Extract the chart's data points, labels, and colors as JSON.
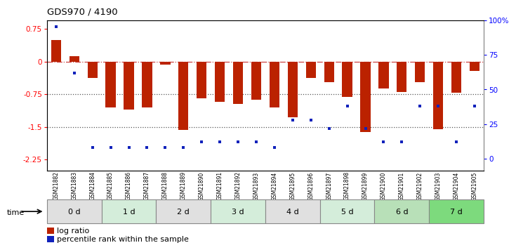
{
  "title": "GDS970 / 4190",
  "samples": [
    "GSM21882",
    "GSM21883",
    "GSM21884",
    "GSM21885",
    "GSM21886",
    "GSM21887",
    "GSM21888",
    "GSM21889",
    "GSM21890",
    "GSM21891",
    "GSM21892",
    "GSM21893",
    "GSM21894",
    "GSM21895",
    "GSM21896",
    "GSM21897",
    "GSM21898",
    "GSM21899",
    "GSM21900",
    "GSM21901",
    "GSM21902",
    "GSM21903",
    "GSM21904",
    "GSM21905"
  ],
  "log_ratio": [
    0.5,
    0.12,
    -0.38,
    -1.05,
    -1.1,
    -1.05,
    -0.08,
    -1.58,
    -0.85,
    -0.92,
    -0.98,
    -0.88,
    -1.05,
    -1.28,
    -0.38,
    -0.48,
    -0.82,
    -1.62,
    -0.62,
    -0.7,
    -0.48,
    -1.55,
    -0.72,
    -0.22
  ],
  "pct_rank": [
    95,
    62,
    8,
    8,
    8,
    8,
    8,
    8,
    12,
    12,
    12,
    12,
    8,
    28,
    28,
    22,
    38,
    22,
    12,
    12,
    38,
    38,
    12,
    38
  ],
  "time_groups": [
    {
      "label": "0 d",
      "start": 0,
      "end": 3,
      "color": "#e0e0e0"
    },
    {
      "label": "1 d",
      "start": 3,
      "end": 6,
      "color": "#d4edda"
    },
    {
      "label": "2 d",
      "start": 6,
      "end": 9,
      "color": "#e0e0e0"
    },
    {
      "label": "3 d",
      "start": 9,
      "end": 12,
      "color": "#d4edda"
    },
    {
      "label": "4 d",
      "start": 12,
      "end": 15,
      "color": "#e0e0e0"
    },
    {
      "label": "5 d",
      "start": 15,
      "end": 18,
      "color": "#d4edda"
    },
    {
      "label": "6 d",
      "start": 18,
      "end": 21,
      "color": "#b8e0b8"
    },
    {
      "label": "7 d",
      "start": 21,
      "end": 24,
      "color": "#7dda7d"
    }
  ],
  "ylim_left": [
    -2.5,
    0.95
  ],
  "ylim_right": [
    -8.33,
    100
  ],
  "yticks_left": [
    0.75,
    0.0,
    -0.75,
    -1.5,
    -2.25
  ],
  "ytick_strs_left": [
    "0.75",
    "0",
    "-0.75",
    "-1.5",
    "-2.25"
  ],
  "yticks_right": [
    0,
    25,
    50,
    75,
    100
  ],
  "ytick_labels_right": [
    "0",
    "25",
    "50",
    "75",
    "100%"
  ],
  "bar_color": "#bb2200",
  "dot_color": "#1122bb",
  "bar_width": 0.55
}
